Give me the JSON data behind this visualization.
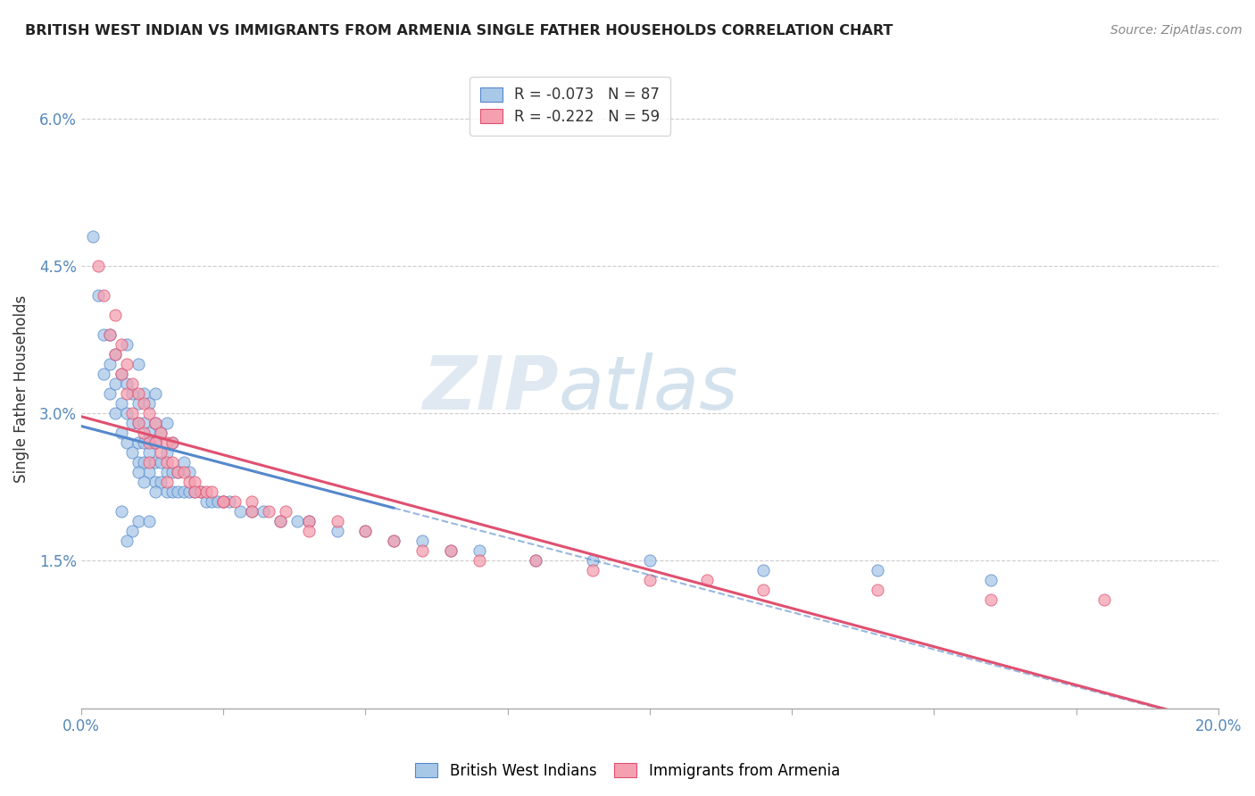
{
  "title": "BRITISH WEST INDIAN VS IMMIGRANTS FROM ARMENIA SINGLE FATHER HOUSEHOLDS CORRELATION CHART",
  "source": "Source: ZipAtlas.com",
  "ylabel": "Single Father Households",
  "xlim": [
    0.0,
    0.2
  ],
  "ylim": [
    0.0,
    0.065
  ],
  "xticks": [
    0.0,
    0.025,
    0.05,
    0.075,
    0.1,
    0.125,
    0.15,
    0.175,
    0.2
  ],
  "xticklabels": [
    "0.0%",
    "",
    "",
    "",
    "",
    "",
    "",
    "",
    "20.0%"
  ],
  "yticks": [
    0.0,
    0.015,
    0.03,
    0.045,
    0.06
  ],
  "yticklabels": [
    "",
    "1.5%",
    "3.0%",
    "4.5%",
    "6.0%"
  ],
  "color_blue": "#a8c8e8",
  "color_pink": "#f4a0b0",
  "line_blue": "#5588cc",
  "line_pink": "#e05070",
  "legend_line1": "R = -0.073   N = 87",
  "legend_line2": "R = -0.222   N = 59",
  "watermark": "ZIPatlas",
  "blue_scatter_x": [
    0.002,
    0.003,
    0.004,
    0.004,
    0.005,
    0.005,
    0.005,
    0.006,
    0.006,
    0.006,
    0.007,
    0.007,
    0.007,
    0.008,
    0.008,
    0.008,
    0.008,
    0.009,
    0.009,
    0.009,
    0.01,
    0.01,
    0.01,
    0.01,
    0.01,
    0.011,
    0.011,
    0.011,
    0.011,
    0.012,
    0.012,
    0.012,
    0.012,
    0.013,
    0.013,
    0.013,
    0.013,
    0.013,
    0.014,
    0.014,
    0.014,
    0.015,
    0.015,
    0.015,
    0.015,
    0.016,
    0.016,
    0.016,
    0.017,
    0.017,
    0.018,
    0.018,
    0.019,
    0.019,
    0.02,
    0.021,
    0.022,
    0.023,
    0.024,
    0.025,
    0.026,
    0.028,
    0.03,
    0.032,
    0.035,
    0.038,
    0.04,
    0.045,
    0.05,
    0.055,
    0.06,
    0.065,
    0.07,
    0.08,
    0.09,
    0.1,
    0.12,
    0.14,
    0.16,
    0.01,
    0.009,
    0.008,
    0.007,
    0.012,
    0.013,
    0.011,
    0.01
  ],
  "blue_scatter_y": [
    0.048,
    0.042,
    0.038,
    0.034,
    0.032,
    0.035,
    0.038,
    0.03,
    0.033,
    0.036,
    0.028,
    0.031,
    0.034,
    0.027,
    0.03,
    0.033,
    0.037,
    0.026,
    0.029,
    0.032,
    0.025,
    0.027,
    0.029,
    0.031,
    0.035,
    0.025,
    0.027,
    0.029,
    0.032,
    0.024,
    0.026,
    0.028,
    0.031,
    0.023,
    0.025,
    0.027,
    0.029,
    0.032,
    0.023,
    0.025,
    0.028,
    0.022,
    0.024,
    0.026,
    0.029,
    0.022,
    0.024,
    0.027,
    0.022,
    0.024,
    0.022,
    0.025,
    0.022,
    0.024,
    0.022,
    0.022,
    0.021,
    0.021,
    0.021,
    0.021,
    0.021,
    0.02,
    0.02,
    0.02,
    0.019,
    0.019,
    0.019,
    0.018,
    0.018,
    0.017,
    0.017,
    0.016,
    0.016,
    0.015,
    0.015,
    0.015,
    0.014,
    0.014,
    0.013,
    0.019,
    0.018,
    0.017,
    0.02,
    0.019,
    0.022,
    0.023,
    0.024
  ],
  "pink_scatter_x": [
    0.003,
    0.004,
    0.005,
    0.006,
    0.006,
    0.007,
    0.007,
    0.008,
    0.008,
    0.009,
    0.009,
    0.01,
    0.01,
    0.011,
    0.011,
    0.012,
    0.012,
    0.013,
    0.013,
    0.014,
    0.014,
    0.015,
    0.015,
    0.016,
    0.016,
    0.017,
    0.018,
    0.019,
    0.02,
    0.021,
    0.022,
    0.023,
    0.025,
    0.027,
    0.03,
    0.033,
    0.036,
    0.04,
    0.045,
    0.05,
    0.055,
    0.06,
    0.065,
    0.07,
    0.08,
    0.09,
    0.1,
    0.11,
    0.12,
    0.14,
    0.16,
    0.18,
    0.012,
    0.015,
    0.02,
    0.025,
    0.03,
    0.035,
    0.04
  ],
  "pink_scatter_y": [
    0.045,
    0.042,
    0.038,
    0.036,
    0.04,
    0.034,
    0.037,
    0.032,
    0.035,
    0.03,
    0.033,
    0.029,
    0.032,
    0.028,
    0.031,
    0.027,
    0.03,
    0.027,
    0.029,
    0.026,
    0.028,
    0.025,
    0.027,
    0.025,
    0.027,
    0.024,
    0.024,
    0.023,
    0.023,
    0.022,
    0.022,
    0.022,
    0.021,
    0.021,
    0.021,
    0.02,
    0.02,
    0.019,
    0.019,
    0.018,
    0.017,
    0.016,
    0.016,
    0.015,
    0.015,
    0.014,
    0.013,
    0.013,
    0.012,
    0.012,
    0.011,
    0.011,
    0.025,
    0.023,
    0.022,
    0.021,
    0.02,
    0.019,
    0.018
  ],
  "blue_line_x_end": 0.055,
  "pink_line_x_end": 0.195,
  "blue_line_intercept": 0.0265,
  "blue_line_slope": -0.065,
  "pink_line_intercept": 0.0285,
  "pink_line_slope": -0.095
}
